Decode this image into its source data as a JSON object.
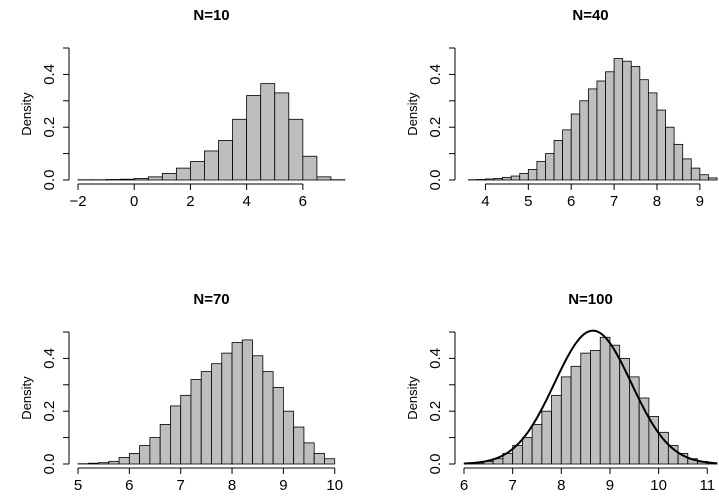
{
  "chart_data": [
    {
      "type": "bar",
      "title": "N=10",
      "ylabel": "Density",
      "xlim": [
        -2,
        7.5
      ],
      "ylim": [
        0,
        0.5
      ],
      "xticks": [
        -2,
        0,
        2,
        4,
        6
      ],
      "xtick_labels": [
        "−2",
        "0",
        "2",
        "4",
        "6"
      ],
      "yticks": [
        0.0,
        0.2,
        0.4
      ],
      "ytick_labels": [
        "0.0",
        "0.2",
        "0.4"
      ],
      "bin_width": 0.5,
      "bin_starts": [
        -2.0,
        -1.5,
        -1.0,
        -0.5,
        0.0,
        0.5,
        1.0,
        1.5,
        2.0,
        2.5,
        3.0,
        3.5,
        4.0,
        4.5,
        5.0,
        5.5,
        6.0,
        6.5,
        7.0
      ],
      "values": [
        0.001,
        0.001,
        0.002,
        0.003,
        0.006,
        0.012,
        0.025,
        0.045,
        0.07,
        0.11,
        0.15,
        0.23,
        0.32,
        0.365,
        0.33,
        0.23,
        0.09,
        0.012,
        0.001
      ]
    },
    {
      "type": "bar",
      "title": "N=40",
      "ylabel": "Density",
      "xlim": [
        3.5,
        9.4
      ],
      "ylim": [
        0,
        0.5
      ],
      "xticks": [
        4,
        5,
        6,
        7,
        8,
        9
      ],
      "xtick_labels": [
        "4",
        "5",
        "6",
        "7",
        "8",
        "9"
      ],
      "yticks": [
        0.0,
        0.2,
        0.4
      ],
      "ytick_labels": [
        "0.0",
        "0.2",
        "0.4"
      ],
      "bin_width": 0.2,
      "bin_starts": [
        3.6,
        3.8,
        4.0,
        4.2,
        4.4,
        4.6,
        4.8,
        5.0,
        5.2,
        5.4,
        5.6,
        5.8,
        6.0,
        6.2,
        6.4,
        6.6,
        6.8,
        7.0,
        7.2,
        7.4,
        7.6,
        7.8,
        8.0,
        8.2,
        8.4,
        8.6,
        8.8,
        9.0,
        9.2
      ],
      "values": [
        0.001,
        0.002,
        0.004,
        0.006,
        0.01,
        0.015,
        0.025,
        0.04,
        0.07,
        0.1,
        0.15,
        0.19,
        0.25,
        0.3,
        0.345,
        0.375,
        0.41,
        0.46,
        0.45,
        0.43,
        0.38,
        0.33,
        0.265,
        0.2,
        0.135,
        0.08,
        0.045,
        0.02,
        0.008
      ]
    },
    {
      "type": "bar",
      "title": "N=70",
      "ylabel": "Density",
      "xlim": [
        5,
        10.2
      ],
      "ylim": [
        0,
        0.5
      ],
      "xticks": [
        5,
        6,
        7,
        8,
        9,
        10
      ],
      "xtick_labels": [
        "5",
        "6",
        "7",
        "8",
        "9",
        "10"
      ],
      "yticks": [
        0.0,
        0.2,
        0.4
      ],
      "ytick_labels": [
        "0.0",
        "0.2",
        "0.4"
      ],
      "bin_width": 0.2,
      "bin_starts": [
        5.0,
        5.2,
        5.4,
        5.6,
        5.8,
        6.0,
        6.2,
        6.4,
        6.6,
        6.8,
        7.0,
        7.2,
        7.4,
        7.6,
        7.8,
        8.0,
        8.2,
        8.4,
        8.6,
        8.8,
        9.0,
        9.2,
        9.4,
        9.6,
        9.8
      ],
      "values": [
        0.001,
        0.003,
        0.005,
        0.01,
        0.025,
        0.04,
        0.07,
        0.1,
        0.15,
        0.22,
        0.26,
        0.32,
        0.35,
        0.38,
        0.42,
        0.46,
        0.47,
        0.41,
        0.35,
        0.29,
        0.2,
        0.14,
        0.08,
        0.04,
        0.02
      ]
    },
    {
      "type": "bar",
      "title": "N=100",
      "ylabel": "Density",
      "xlim": [
        6,
        11.2
      ],
      "ylim": [
        0,
        0.5
      ],
      "xticks": [
        6,
        7,
        8,
        9,
        10,
        11
      ],
      "xtick_labels": [
        "6",
        "7",
        "8",
        "9",
        "10",
        "11"
      ],
      "yticks": [
        0.0,
        0.2,
        0.4
      ],
      "ytick_labels": [
        "0.0",
        "0.2",
        "0.4"
      ],
      "bin_width": 0.2,
      "bin_starts": [
        6.0,
        6.2,
        6.4,
        6.6,
        6.8,
        7.0,
        7.2,
        7.4,
        7.6,
        7.8,
        8.0,
        8.2,
        8.4,
        8.6,
        8.8,
        9.0,
        9.2,
        9.4,
        9.6,
        9.8,
        10.0,
        10.2,
        10.4,
        10.6,
        10.8,
        11.0
      ],
      "values": [
        0.001,
        0.004,
        0.01,
        0.02,
        0.04,
        0.07,
        0.1,
        0.15,
        0.2,
        0.26,
        0.33,
        0.37,
        0.42,
        0.43,
        0.48,
        0.45,
        0.4,
        0.33,
        0.25,
        0.18,
        0.12,
        0.07,
        0.04,
        0.02,
        0.01,
        0.004
      ],
      "density_curve": {
        "type": "normal",
        "mean": 8.65,
        "sd": 0.79
      }
    }
  ]
}
